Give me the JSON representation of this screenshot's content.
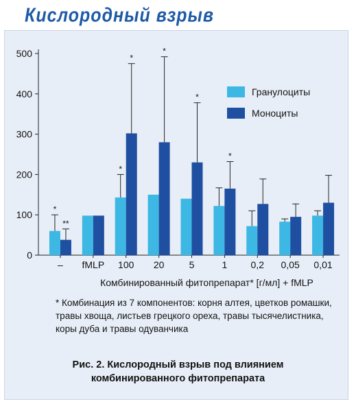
{
  "heading": "Кислородный взрыв",
  "chart_data": {
    "type": "bar",
    "categories": [
      "–",
      "fMLP",
      "100",
      "20",
      "5",
      "1",
      "0,2",
      "0,05",
      "0,01"
    ],
    "series": [
      {
        "name": "Гранулоциты",
        "color": "#3db7e4",
        "values": [
          60,
          98,
          143,
          150,
          140,
          122,
          72,
          83,
          98
        ],
        "errors": [
          40,
          0,
          57,
          0,
          0,
          45,
          38,
          7,
          12
        ],
        "marks": [
          "*",
          "",
          "*",
          "",
          "",
          "",
          "",
          "",
          ""
        ]
      },
      {
        "name": "Моноциты",
        "color": "#1f4fa0",
        "values": [
          38,
          98,
          302,
          280,
          230,
          165,
          127,
          95,
          130
        ],
        "errors": [
          27,
          0,
          173,
          212,
          148,
          67,
          62,
          32,
          68
        ],
        "marks": [
          "**",
          "",
          "*",
          "*",
          "*",
          "*",
          "",
          "",
          ""
        ]
      }
    ],
    "ylim": [
      0,
      500
    ],
    "yticks": [
      0,
      100,
      200,
      300,
      400,
      500
    ],
    "xlabel": "Комбинированный фитопрепарат* [г/мл] + fMLP",
    "ylabel": "",
    "legend_position": "top-right",
    "grid": false
  },
  "footnote": "* Комбинация из 7 компонентов: корня алтея, цветков ромашки, травы хвоща, листьев грецкого ореха, травы тысячелистника, коры дуба и травы одуванчика",
  "caption": {
    "line1": "Рис. 2. Кислородный взрыв под влиянием",
    "line2": "комбинированного фитопрепарата"
  }
}
